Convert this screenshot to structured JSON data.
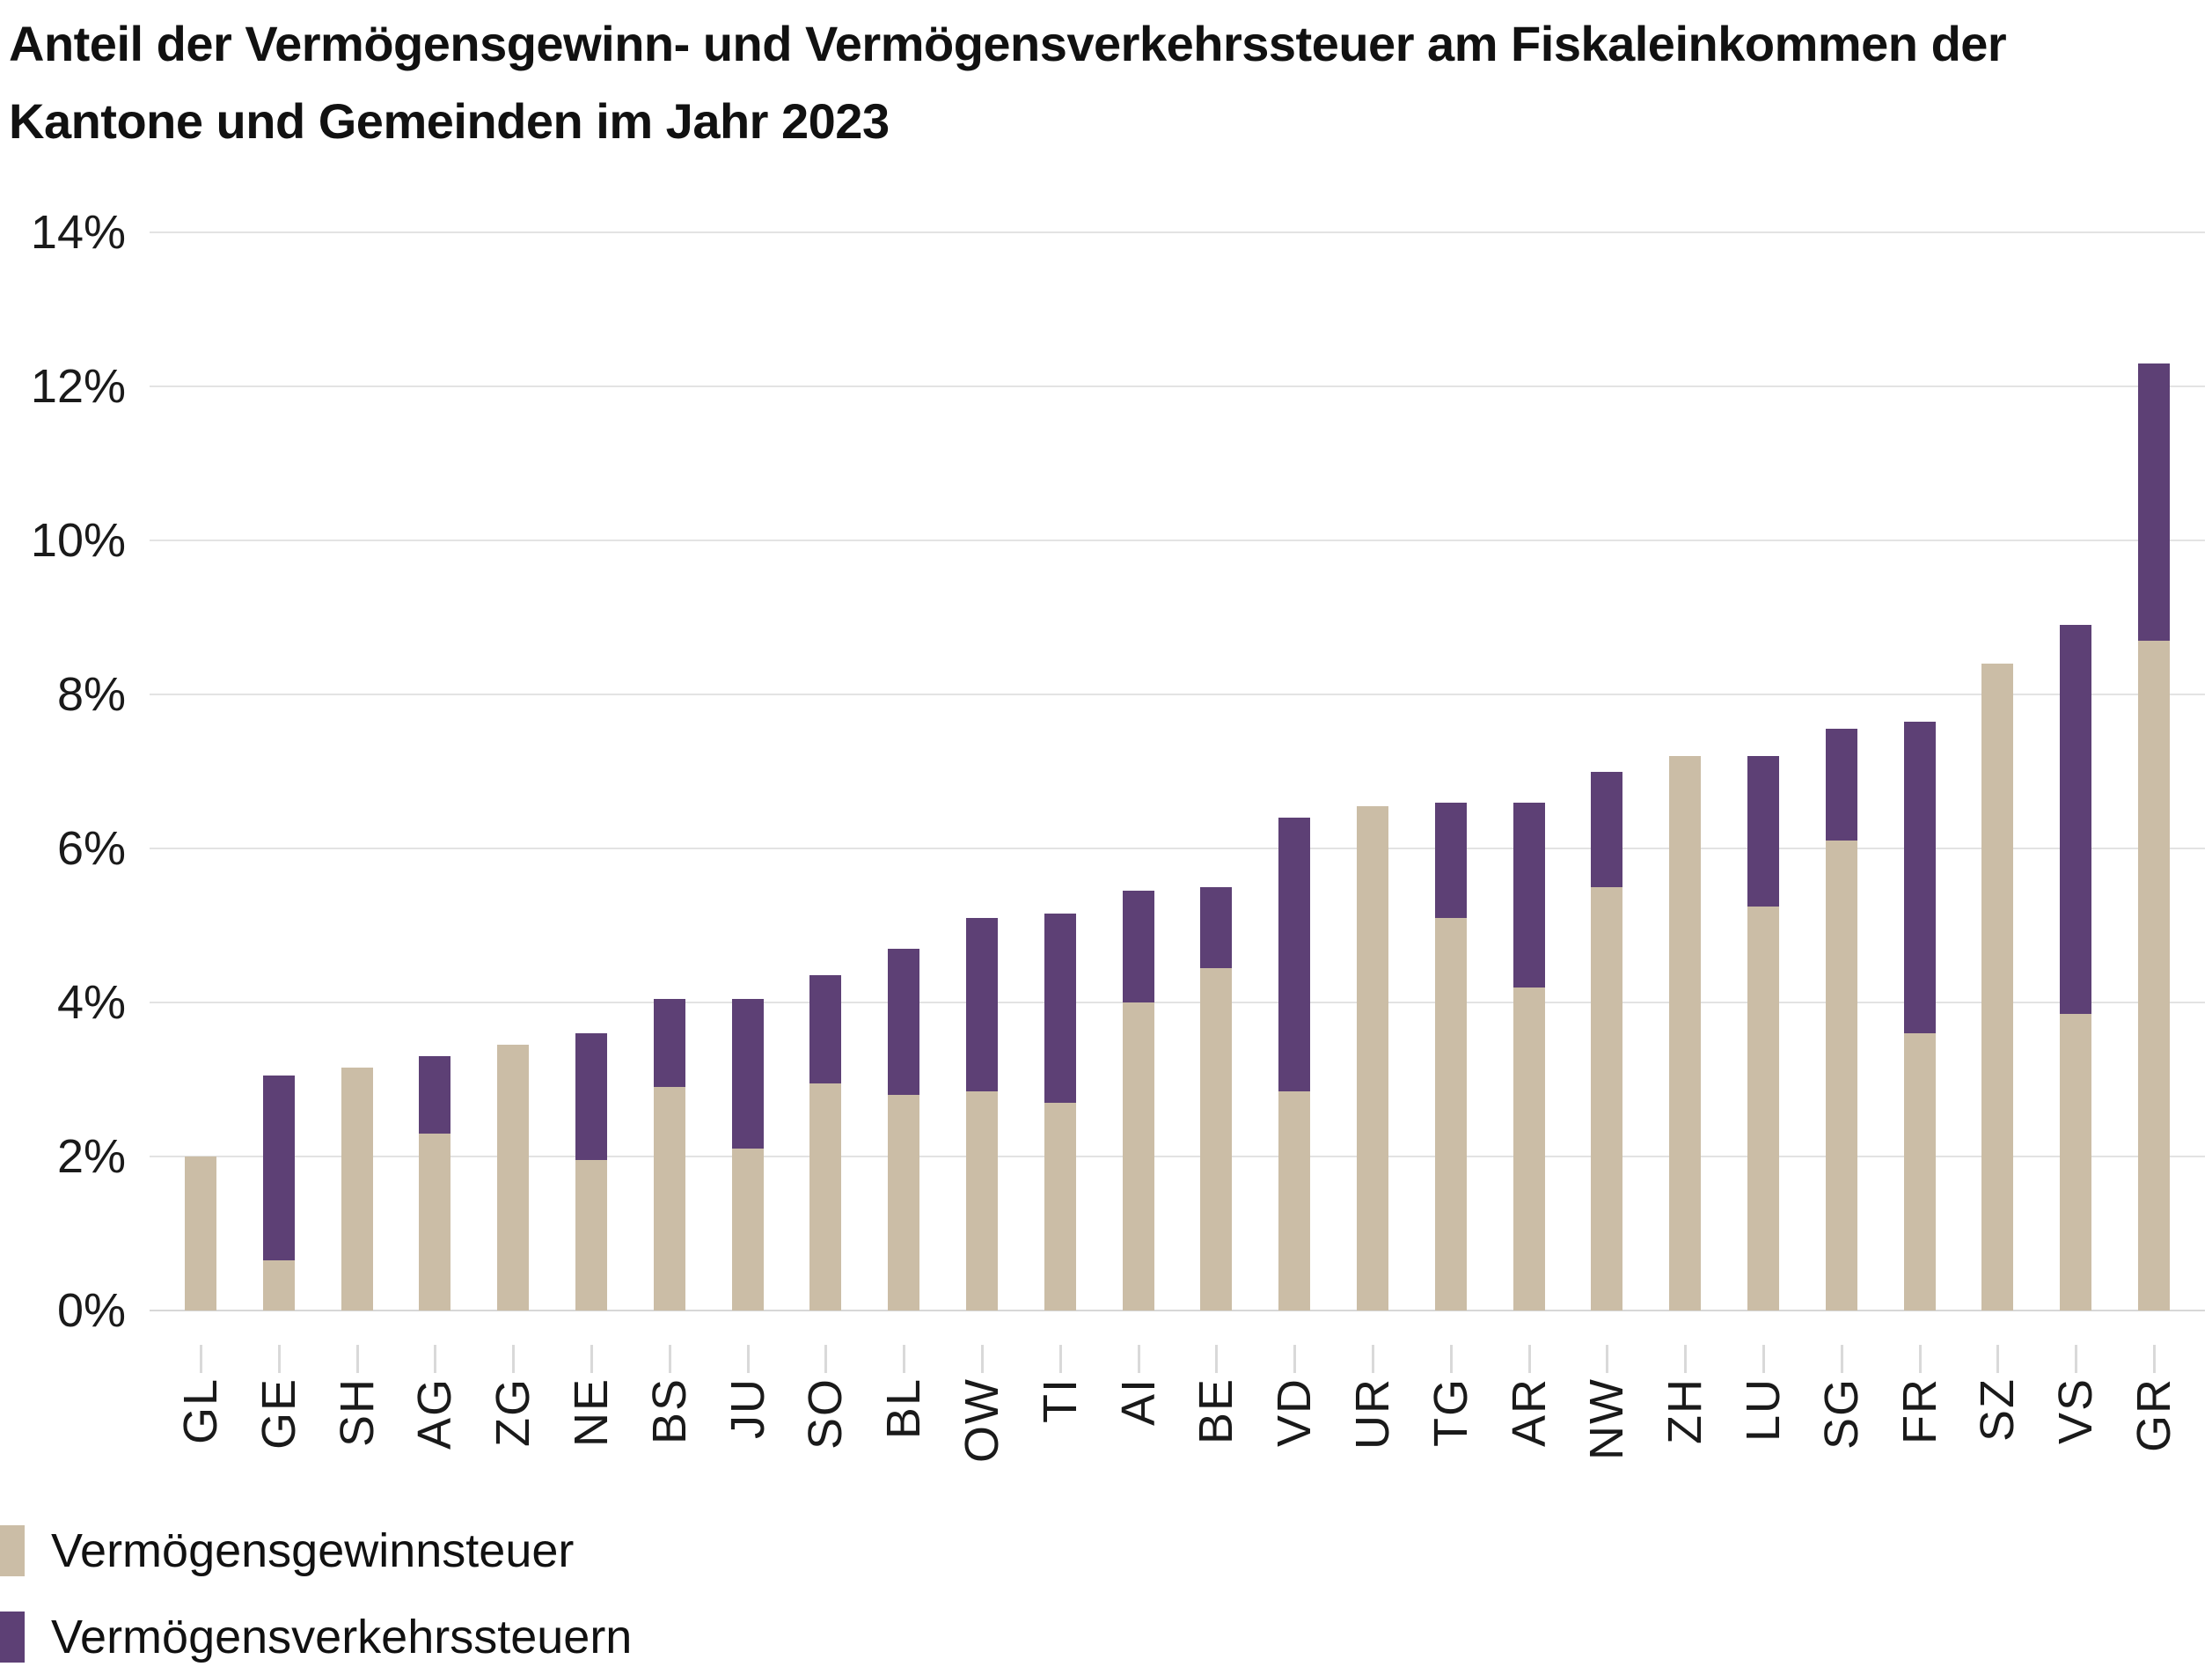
{
  "title": {
    "line1": "Anteil der Vermögensgewinn- und Vermögensverkehrssteuer am Fiskaleinkommen der",
    "line2": "Kantone und Gemeinden im Jahr 2023"
  },
  "legend": [
    {
      "label": "Vermögensgewinnsteuer",
      "color": "#cbbda6"
    },
    {
      "label": "Vermögensverkehrssteuern",
      "color": "#5d4075"
    }
  ],
  "colors": {
    "series_gewinn": "#cbbda6",
    "series_verkehr": "#5d4075",
    "gridline": "#e3e3e3",
    "tick": "#d9d9d9",
    "text": "#111111",
    "background": "#ffffff"
  },
  "chart_data": {
    "type": "bar",
    "stacked": true,
    "title": "Anteil der Vermögensgewinn- und Vermögensverkehrssteuer am Fiskaleinkommen der Kantone und Gemeinden im Jahr 2023",
    "categories": [
      "GL",
      "GE",
      "SH",
      "AG",
      "ZG",
      "NE",
      "BS",
      "JU",
      "SO",
      "BL",
      "OW",
      "TI",
      "AI",
      "BE",
      "VD",
      "UR",
      "TG",
      "AR",
      "NW",
      "ZH",
      "LU",
      "SG",
      "FR",
      "SZ",
      "VS",
      "GR"
    ],
    "series": [
      {
        "name": "Vermögensgewinnsteuer",
        "color": "#cbbda6",
        "values": [
          2.0,
          0.65,
          3.15,
          2.3,
          3.45,
          1.95,
          2.9,
          2.1,
          2.95,
          2.8,
          2.85,
          2.7,
          4.0,
          4.45,
          2.85,
          6.55,
          5.1,
          4.2,
          5.5,
          7.2,
          5.25,
          6.1,
          3.6,
          8.4,
          3.85,
          8.7
        ]
      },
      {
        "name": "Vermögensverkehrssteuern",
        "color": "#5d4075",
        "values": [
          0,
          2.4,
          0,
          1.0,
          0,
          1.65,
          1.15,
          1.95,
          1.4,
          1.9,
          2.25,
          2.45,
          1.45,
          1.05,
          3.55,
          0,
          1.5,
          2.4,
          1.5,
          0,
          1.95,
          1.45,
          4.05,
          0,
          5.05,
          3.6
        ]
      }
    ],
    "totals": [
      2.0,
      3.05,
      3.15,
      3.3,
      3.45,
      3.6,
      4.05,
      4.05,
      4.35,
      4.7,
      5.1,
      5.15,
      5.45,
      5.5,
      6.4,
      6.55,
      6.6,
      6.6,
      7.0,
      7.2,
      7.2,
      7.55,
      7.65,
      8.4,
      8.9,
      12.3
    ],
    "xlabel": "",
    "ylabel": "",
    "y_axis": {
      "min": 0,
      "max": 14,
      "step": 2,
      "tick_labels": [
        "0%",
        "2%",
        "4%",
        "6%",
        "8%",
        "10%",
        "12%",
        "14%"
      ]
    },
    "grid": true,
    "legend_position": "bottom-left"
  }
}
